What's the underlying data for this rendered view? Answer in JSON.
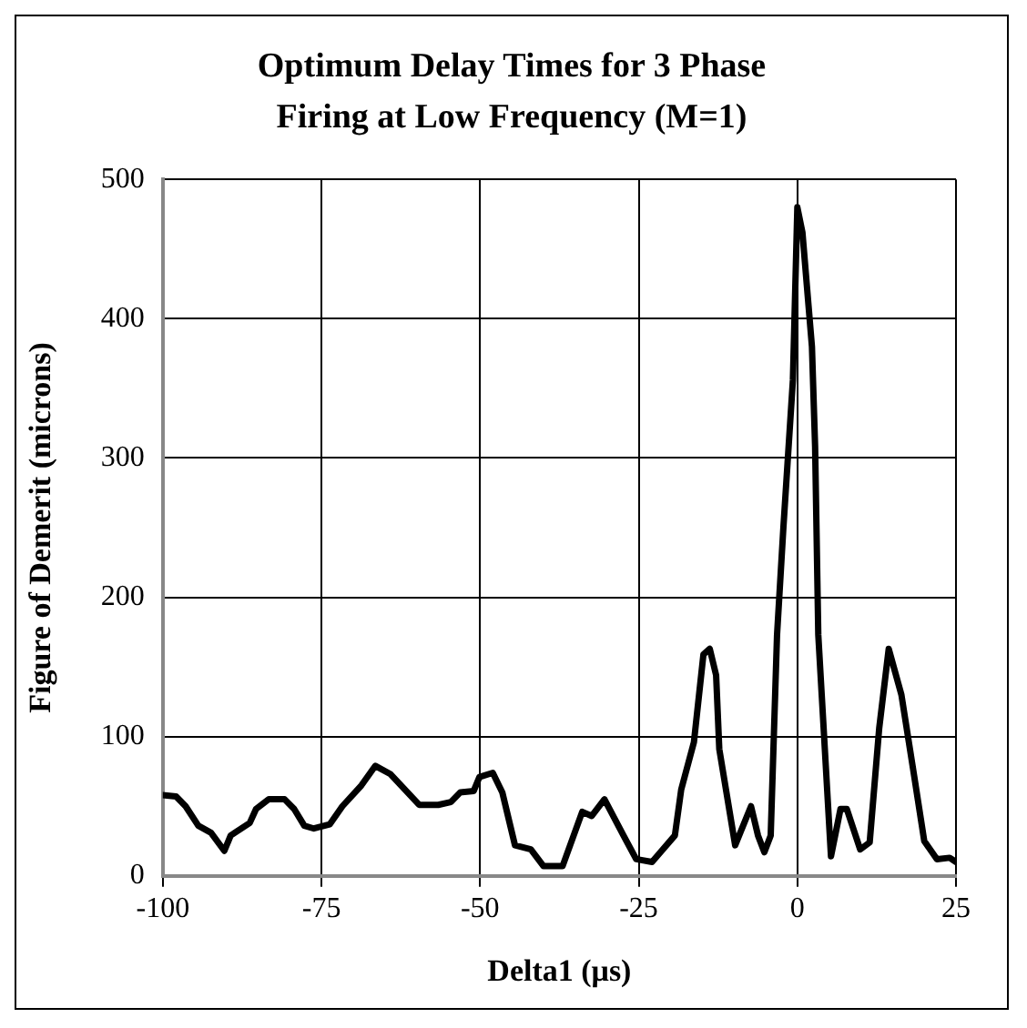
{
  "chart_data": {
    "type": "line",
    "title": "Optimum Delay Times for 3 Phase Firing at Low Frequency (M=1)",
    "xlabel": "Delta1 (μs)",
    "ylabel": "Figure of Demerit (microns)",
    "series": [
      {
        "color": "#000000",
        "x": [
          -100,
          -97.9,
          -96.4,
          -94.4,
          -92.4,
          -90.3,
          -89.3,
          -86.3,
          -85.3,
          -83.3,
          -80.8,
          -79.3,
          -77.7,
          -76.2,
          -73.7,
          -71.7,
          -68.7,
          -66.5,
          -64.1,
          -59.6,
          -56.6,
          -54.6,
          -53.1,
          -51,
          -50.1,
          -48,
          -46.5,
          -44.5,
          -42,
          -40,
          -37,
          -33.9,
          -32.4,
          -30.4,
          -27.4,
          -25.4,
          -22.9,
          -19.3,
          -18.3,
          -16.3,
          -14.8,
          -13.8,
          -12.8,
          -12.3,
          -9.8,
          -7.3,
          -6.2,
          -5.2,
          -4.2,
          -3.7,
          -3.2,
          -2.2,
          -0.7,
          0,
          0.8,
          2.3,
          2.8,
          3.3,
          5.3,
          6.8,
          7.8,
          9.9,
          11.4,
          12.9,
          14.4,
          16.4,
          18.4,
          20,
          22,
          24,
          25
        ],
        "values": [
          58,
          57,
          50,
          36,
          31,
          18,
          29,
          38,
          48,
          55,
          55,
          48,
          36,
          34,
          37,
          50,
          65,
          79,
          73,
          51,
          51,
          53,
          60,
          61,
          71,
          74,
          60,
          22,
          19,
          7,
          7,
          46,
          43,
          55,
          29,
          12,
          10,
          29,
          62,
          96,
          159,
          163,
          144,
          91,
          22,
          50,
          29,
          17,
          29,
          101,
          173,
          250,
          356,
          480,
          462,
          380,
          308,
          173,
          14,
          48,
          48,
          19,
          24,
          106,
          163,
          130,
          72,
          25,
          12,
          13,
          10
        ]
      }
    ],
    "xlim": [
      -100,
      25
    ],
    "xticks": [
      -100,
      -75,
      -50,
      -25,
      0,
      25
    ],
    "ylim": [
      0,
      500
    ],
    "yticks": [
      0,
      100,
      200,
      300,
      400,
      500
    ],
    "grid": true,
    "legend": false,
    "marker": "none",
    "line_style": "solid"
  }
}
